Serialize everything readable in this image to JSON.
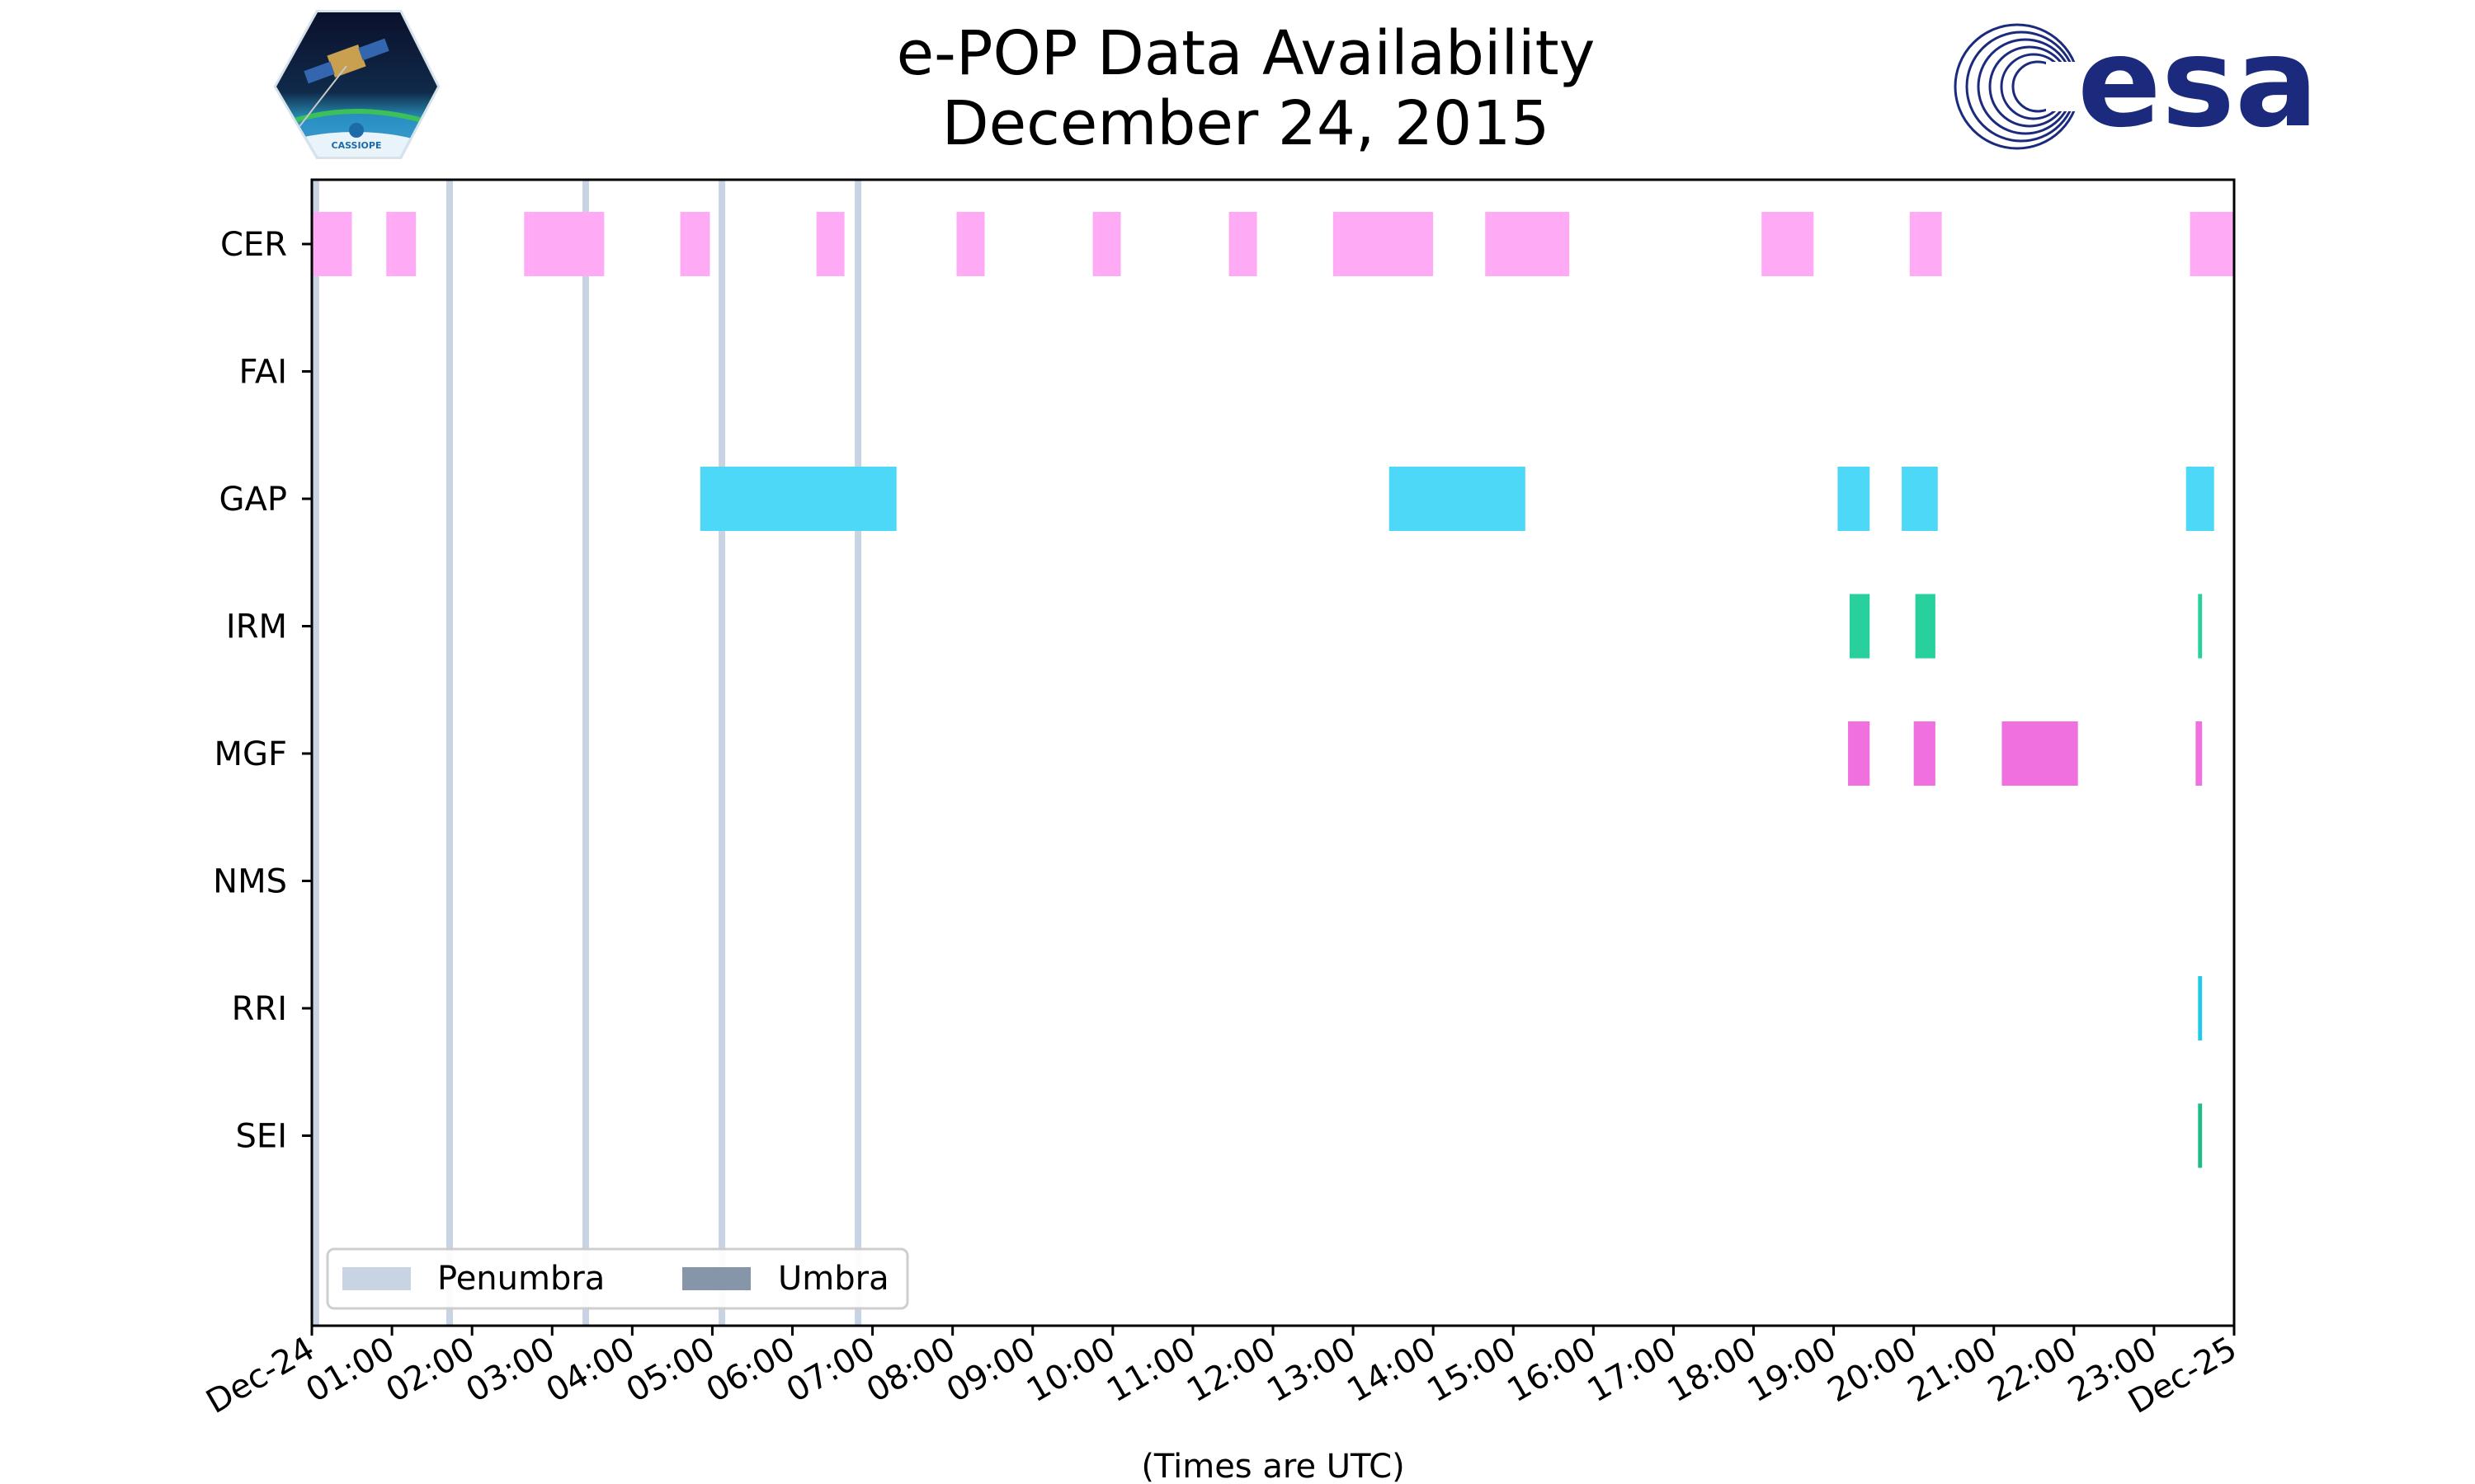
{
  "chart_data": {
    "type": "timeline",
    "title": [
      "e-POP Data Availability",
      "December 24, 2015"
    ],
    "xlabel": "(Times are UTC)",
    "x_range_hours": [
      0,
      24
    ],
    "x_tick_labels": [
      "Dec-24",
      "01:00",
      "02:00",
      "03:00",
      "04:00",
      "05:00",
      "06:00",
      "07:00",
      "08:00",
      "09:00",
      "10:00",
      "11:00",
      "12:00",
      "13:00",
      "14:00",
      "15:00",
      "16:00",
      "17:00",
      "18:00",
      "19:00",
      "20:00",
      "21:00",
      "22:00",
      "23:00",
      "Dec-25"
    ],
    "categories": [
      "CER",
      "FAI",
      "GAP",
      "IRM",
      "MGF",
      "NMS",
      "RRI",
      "SEI"
    ],
    "series": [
      {
        "name": "CER",
        "color": "#ffaaf4",
        "intervals": [
          [
            0.0,
            0.5
          ],
          [
            0.93,
            0.98
          ],
          [
            0.98,
            1.3
          ],
          [
            2.65,
            2.7
          ],
          [
            2.7,
            3.65
          ],
          [
            4.6,
            4.67
          ],
          [
            4.67,
            4.97
          ],
          [
            6.3,
            6.35
          ],
          [
            6.35,
            6.65
          ],
          [
            8.05,
            8.1
          ],
          [
            8.1,
            8.4
          ],
          [
            9.75,
            9.8
          ],
          [
            9.8,
            10.1
          ],
          [
            11.45,
            11.5
          ],
          [
            11.5,
            11.8
          ],
          [
            12.75,
            12.82
          ],
          [
            12.82,
            14.0
          ],
          [
            14.65,
            14.72
          ],
          [
            14.72,
            15.7
          ],
          [
            18.1,
            18.17
          ],
          [
            18.17,
            18.75
          ],
          [
            19.95,
            20.02
          ],
          [
            20.02,
            20.35
          ],
          [
            23.45,
            23.52
          ],
          [
            23.52,
            24.0
          ]
        ]
      },
      {
        "name": "FAI",
        "color": "#9ad29c",
        "intervals": []
      },
      {
        "name": "GAP",
        "color": "#4dd8f8",
        "intervals": [
          [
            4.85,
            7.3
          ],
          [
            13.45,
            15.15
          ],
          [
            19.05,
            19.45
          ],
          [
            19.85,
            20.3
          ],
          [
            23.4,
            23.75
          ]
        ]
      },
      {
        "name": "IRM",
        "color": "#27d09d",
        "intervals": [
          [
            19.2,
            19.45
          ],
          [
            20.02,
            20.27
          ],
          [
            23.55,
            23.6
          ]
        ]
      },
      {
        "name": "MGF",
        "color": "#f070e0",
        "intervals": [
          [
            19.18,
            19.45
          ],
          [
            20.0,
            20.27
          ],
          [
            21.1,
            22.05
          ],
          [
            23.52,
            23.6
          ]
        ]
      },
      {
        "name": "NMS",
        "color": "#a0a0ff",
        "intervals": []
      },
      {
        "name": "RRI",
        "color": "#20c8ea",
        "intervals": [
          [
            23.55,
            23.6
          ]
        ]
      },
      {
        "name": "SEI",
        "color": "#1fbc8a",
        "intervals": [
          [
            23.55,
            23.6
          ]
        ]
      }
    ],
    "penumbra_color": "#c8d4e4",
    "umbra_color": "#8695a8",
    "penumbra_times": [
      0.05,
      1.72,
      3.42,
      5.12,
      6.82
    ],
    "umbra_times": [],
    "legend": {
      "location": "lower-left",
      "entries": [
        "Penumbra",
        "Umbra"
      ]
    }
  },
  "logos": {
    "left_mission_text": "CASSIOPE",
    "right_brand_text": "esa"
  }
}
